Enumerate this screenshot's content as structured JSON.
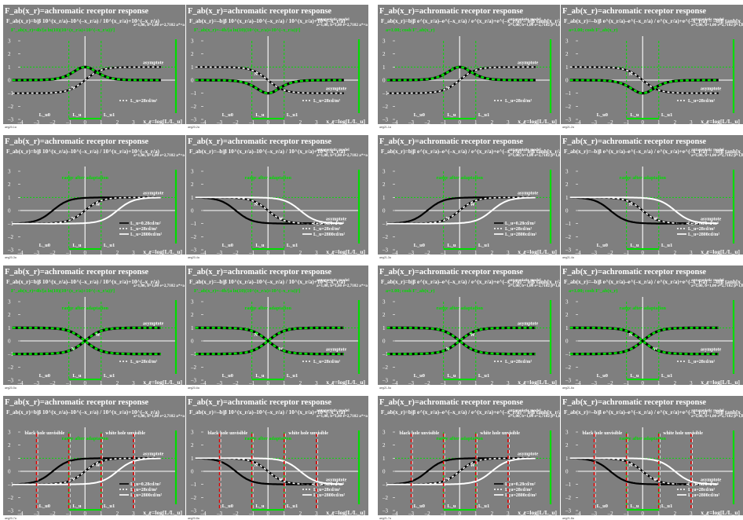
{
  "sheet": {
    "title": "",
    "corner_marks": [
      "+",
      "+",
      "+"
    ]
  },
  "layout": {
    "rows": 4,
    "columns": 4
  },
  "colors": {
    "panel_bg": "#7f7f7f",
    "white": "#ffffff",
    "black": "#000000",
    "green": "#00dd00",
    "red": "#dd0000",
    "dotted_green": "#00dd00"
  },
  "common": {
    "title": "F_ab(x_r)=achromatic receptor response",
    "xlabel": "x_r=log[L/L_u]",
    "y_ticks": [
      "3",
      "2",
      "1",
      "0",
      "–1",
      "–2",
      "–3"
    ],
    "x_ticks": [
      "–4",
      "–3",
      "–2",
      "–1",
      "0",
      "1",
      "2",
      "3",
      "4"
    ],
    "l_ticks": [
      "L_u0",
      "L_u",
      "L_u1"
    ],
    "asymptote": "asymptote",
    "mark_N": "N",
    "mark_W": "W",
    "range_note": "range after adaptation",
    "black_hole": "black hole unvisible",
    "white_hole": "white hole unvisible",
    "legend_single": "L_u=28cd/m²",
    "legend_triple": [
      "L_u=0.28cd/m²",
      "L_u=28cd/m²",
      "L_u=2800cd/m²"
    ]
  },
  "formulas": {
    "exp": "F_ab(x_r)=b|β 10^(x_r/a)–10^(–x_r/a) / 10^(x_r/a)+10^(–x_r/a)",
    "exp_neg": "F_ab(x_r)=–b|β 10^(x_r/a)–10^(–x_r/a) / 10^(x_r/a)+10^(–x_r/a)",
    "tanh": "F_ab(x_r)=b|β e^(x_r/a)–e^(–x_r/a) / e^(x_r/a)+e^(–x_r/a) = b|β tanh[x_r/a]",
    "tanh_neg": "F_ab(x_r)=–b|β e^(x_r/a)–e^(–x_r/a) / e^(x_r/a)+e^(–x_r/a) = –b|β tanh[x_r/a]",
    "deriv_exp": "F'_ab(x_r)=4b/[a ln(10)(10^(x_r/a)+10^(–x_r/a))²]",
    "deriv_exp_neg": "F'_ab(x_r)=–4b/[a ln(10)(10^(x_r/a)+10^(–x_r/a))²]",
    "deriv_tanh": "a=1.00; cosh   F'_ab(x_r)",
    "params_exp": "a=1,00, b=1,00 e=2,7182 a*=a ln(10)=2,302, β=1,0",
    "params_tanh": "a=1,00, b=1,00 e=2,7182 β=1,0",
    "antagonistic": "antagonistic model"
  },
  "panels": [
    {
      "id": "aeg20-1a",
      "curve": "dev",
      "kind": "exp",
      "sign": 1,
      "deriv": true,
      "antag": false,
      "legend": "single",
      "holes": false,
      "range": false
    },
    {
      "id": "aeg20-2a",
      "curve": "dev",
      "kind": "exp",
      "sign": -1,
      "deriv": true,
      "antag": true,
      "legend": "single",
      "holes": false,
      "range": false
    },
    {
      "id": "aeg21-1a",
      "curve": "dev",
      "kind": "tanh",
      "sign": 1,
      "deriv": true,
      "antag": true,
      "legend": "single",
      "holes": false,
      "range": false
    },
    {
      "id": "aeg21-2a",
      "curve": "dev",
      "kind": "tanh",
      "sign": -1,
      "deriv": true,
      "antag": true,
      "legend": "single",
      "holes": false,
      "range": false
    },
    {
      "id": "aeg20-3a",
      "curve": "tri",
      "kind": "exp",
      "sign": 1,
      "deriv": false,
      "antag": false,
      "legend": "triple",
      "holes": false,
      "range": true
    },
    {
      "id": "aeg20-4a",
      "curve": "tri",
      "kind": "exp",
      "sign": -1,
      "deriv": false,
      "antag": true,
      "legend": "triple",
      "holes": false,
      "range": true
    },
    {
      "id": "aeg21-3a",
      "curve": "tri",
      "kind": "tanh",
      "sign": 1,
      "deriv": false,
      "antag": true,
      "legend": "triple",
      "holes": false,
      "range": true
    },
    {
      "id": "aeg21-4a",
      "curve": "tri",
      "kind": "tanh",
      "sign": -1,
      "deriv": false,
      "antag": true,
      "legend": "triple",
      "holes": false,
      "range": true
    },
    {
      "id": "aeg20-5a",
      "curve": "bell",
      "kind": "exp",
      "sign": 1,
      "deriv": true,
      "antag": false,
      "legend": "single",
      "holes": false,
      "range": true
    },
    {
      "id": "aeg20-6a",
      "curve": "bell",
      "kind": "exp",
      "sign": -1,
      "deriv": true,
      "antag": true,
      "legend": "single",
      "holes": false,
      "range": true
    },
    {
      "id": "aeg21-5a",
      "curve": "bell",
      "kind": "tanh",
      "sign": 1,
      "deriv": true,
      "antag": true,
      "legend": "single",
      "holes": false,
      "range": true
    },
    {
      "id": "aeg21-6a",
      "curve": "bell",
      "kind": "tanh",
      "sign": -1,
      "deriv": true,
      "antag": true,
      "legend": "single",
      "holes": false,
      "range": true
    },
    {
      "id": "aeg20-7a",
      "curve": "tri",
      "kind": "exp",
      "sign": 1,
      "deriv": false,
      "antag": false,
      "legend": "triple",
      "holes": true,
      "range": true
    },
    {
      "id": "aeg20-8a",
      "curve": "tri",
      "kind": "exp",
      "sign": -1,
      "deriv": false,
      "antag": true,
      "legend": "triple",
      "holes": true,
      "range": true
    },
    {
      "id": "aeg21-7a",
      "curve": "tri",
      "kind": "tanh",
      "sign": 1,
      "deriv": false,
      "antag": true,
      "legend": "triple",
      "holes": true,
      "range": true
    },
    {
      "id": "aeg21-8a",
      "curve": "tri",
      "kind": "tanh",
      "sign": -1,
      "deriv": false,
      "antag": true,
      "legend": "triple",
      "holes": true,
      "range": true
    }
  ],
  "chart_data": {
    "type": "line",
    "title": "F_ab(x_r)=achromatic receptor response",
    "xlabel": "x_r=log[L/L_u]",
    "ylabel": "",
    "xlim": [
      -4,
      5
    ],
    "ylim": [
      -3,
      3
    ],
    "x_ticks": [
      -4,
      -3,
      -2,
      -1,
      0,
      1,
      2,
      3,
      4
    ],
    "y_ticks": [
      -3,
      -2,
      -1,
      0,
      1,
      2,
      3
    ],
    "grid": false,
    "legend_position": "bottom-right",
    "parameters": {
      "a": 1.0,
      "b": 1.0,
      "e": 2.7182,
      "a_star": 2.302,
      "beta": 1.0
    },
    "series": [
      {
        "name": "L_u=28cd/m²",
        "x": [
          -4,
          -3,
          -2,
          -1,
          0,
          1,
          2,
          3,
          4
        ],
        "y": [
          -1.0,
          -1.0,
          -1.0,
          -0.96,
          0.0,
          0.96,
          1.0,
          1.0,
          1.0
        ]
      },
      {
        "name": "L_u=0.28cd/m²",
        "x": [
          -4,
          -3,
          -2,
          -1,
          0,
          1,
          2,
          3,
          4
        ],
        "y": [
          -0.96,
          0.0,
          0.96,
          1.0,
          1.0,
          1.0,
          1.0,
          1.0,
          1.0
        ]
      },
      {
        "name": "L_u=2800cd/m²",
        "x": [
          -4,
          -3,
          -2,
          -1,
          0,
          1,
          2,
          3,
          4
        ],
        "y": [
          -1.0,
          -1.0,
          -1.0,
          -1.0,
          -1.0,
          -0.96,
          0.0,
          0.96,
          1.0
        ]
      },
      {
        "name": "",
        "x": [
          -4,
          -3,
          -2,
          -1,
          0,
          1,
          2,
          3,
          4
        ],
        "y": [
          0.0,
          0.0,
          0.0,
          0.14,
          1.0,
          0.14,
          0.0,
          0.0,
          0.0
        ]
      }
    ]
  }
}
